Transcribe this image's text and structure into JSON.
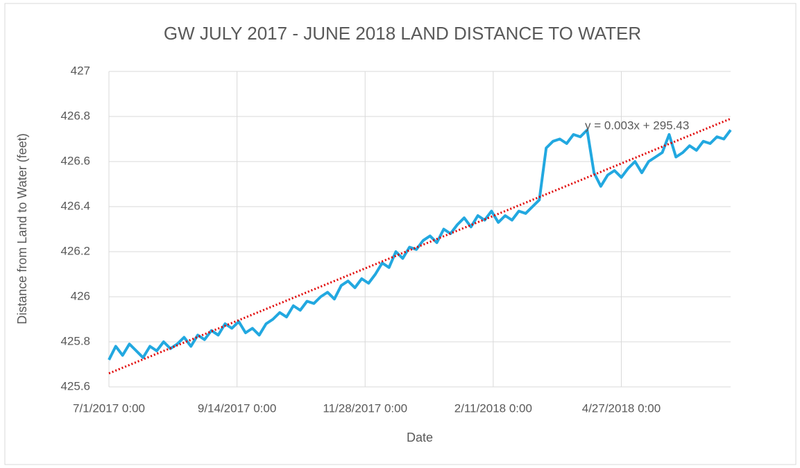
{
  "chart_data": {
    "type": "line",
    "title": "GW JULY 2017 - JUNE 2018 LAND DISTANCE TO WATER",
    "xlabel": "Date",
    "ylabel": "Distance from Land to Water (feet)",
    "x": [
      42917,
      42921,
      42925,
      42929,
      42933,
      42937,
      42941,
      42945,
      42949,
      42953,
      42957,
      42961,
      42965,
      42969,
      42973,
      42977,
      42981,
      42985,
      42989,
      42993,
      42997,
      43001,
      43005,
      43009,
      43013,
      43017,
      43021,
      43025,
      43029,
      43033,
      43037,
      43041,
      43045,
      43049,
      43053,
      43057,
      43061,
      43065,
      43069,
      43073,
      43077,
      43081,
      43085,
      43089,
      43093,
      43097,
      43101,
      43105,
      43109,
      43113,
      43117,
      43121,
      43125,
      43129,
      43133,
      43137,
      43141,
      43145,
      43149,
      43153,
      43157,
      43161,
      43165,
      43169,
      43173,
      43177,
      43181,
      43185,
      43189,
      43193,
      43197,
      43201,
      43205,
      43209,
      43213,
      43217,
      43221,
      43225,
      43229,
      43233,
      43237,
      43241,
      43245,
      43249,
      43253,
      43257,
      43261,
      43265,
      43269,
      43273,
      43277,
      43281
    ],
    "series": [
      {
        "name": "Distance",
        "color": "#22a8e0",
        "values": [
          425.72,
          425.78,
          425.74,
          425.79,
          425.76,
          425.73,
          425.78,
          425.76,
          425.8,
          425.77,
          425.79,
          425.82,
          425.78,
          425.83,
          425.81,
          425.85,
          425.83,
          425.88,
          425.86,
          425.89,
          425.84,
          425.86,
          425.83,
          425.88,
          425.9,
          425.93,
          425.91,
          425.96,
          425.94,
          425.98,
          425.97,
          426.0,
          426.02,
          425.99,
          426.05,
          426.07,
          426.04,
          426.08,
          426.06,
          426.1,
          426.15,
          426.13,
          426.2,
          426.17,
          426.22,
          426.21,
          426.25,
          426.27,
          426.24,
          426.3,
          426.28,
          426.32,
          426.35,
          426.31,
          426.36,
          426.34,
          426.38,
          426.33,
          426.36,
          426.34,
          426.38,
          426.37,
          426.4,
          426.43,
          426.66,
          426.69,
          426.7,
          426.68,
          426.72,
          426.71,
          426.74,
          426.55,
          426.49,
          426.54,
          426.56,
          426.53,
          426.57,
          426.6,
          426.55,
          426.6,
          426.62,
          426.64,
          426.72,
          426.62,
          426.64,
          426.67,
          426.65,
          426.69,
          426.68,
          426.71,
          426.7,
          426.74
        ]
      }
    ],
    "trendline": {
      "x": [
        42917,
        43281
      ],
      "values": [
        425.66,
        426.79
      ],
      "color": "#e00000",
      "label": "y = 0.003x + 295.43"
    },
    "xlim": [
      42917,
      43281
    ],
    "xticks": [
      {
        "value": 42917,
        "label": "7/1/2017 0:00"
      },
      {
        "value": 42992,
        "label": "9/14/2017 0:00"
      },
      {
        "value": 43067,
        "label": "11/28/2017 0:00"
      },
      {
        "value": 43142,
        "label": "2/11/2018 0:00"
      },
      {
        "value": 43217,
        "label": "4/27/2018 0:00"
      }
    ],
    "ylim": [
      425.6,
      427
    ],
    "yticks": [
      425.6,
      425.8,
      426,
      426.2,
      426.4,
      426.6,
      426.8,
      427
    ],
    "grid": true
  }
}
